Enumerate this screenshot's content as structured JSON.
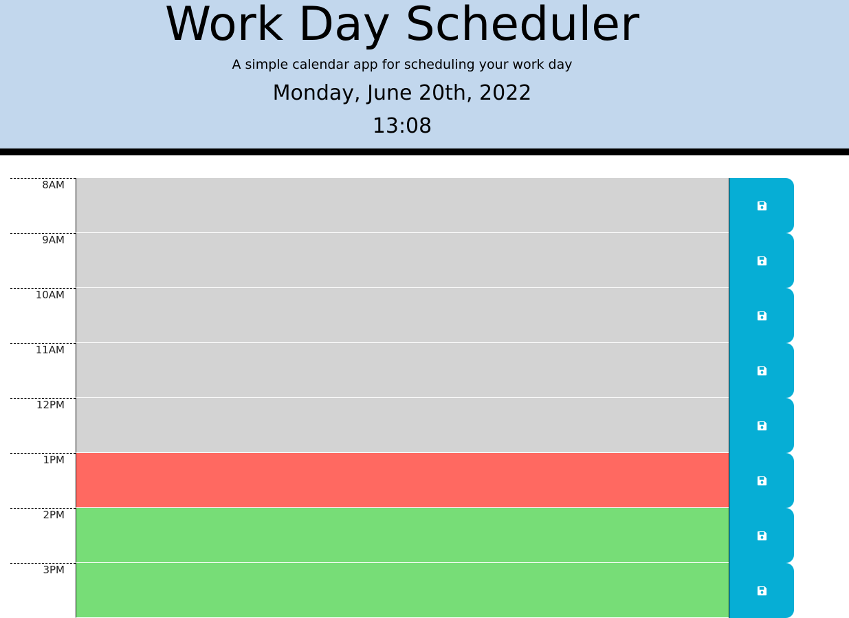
{
  "header": {
    "title": "Work Day Scheduler",
    "subtitle": "A simple calendar app for scheduling your work day",
    "date": "Monday, June 20th, 2022",
    "time": "13:08"
  },
  "colors": {
    "header_bg": "#c2d7ed",
    "past": "#d3d3d3",
    "present": "#ff6961",
    "future": "#77dd77",
    "save_button": "#06aed5"
  },
  "save_icon": "floppy-disk-icon",
  "time_blocks": [
    {
      "hour": "8AM",
      "text": "",
      "status": "past"
    },
    {
      "hour": "9AM",
      "text": "",
      "status": "past"
    },
    {
      "hour": "10AM",
      "text": "",
      "status": "past"
    },
    {
      "hour": "11AM",
      "text": "",
      "status": "past"
    },
    {
      "hour": "12PM",
      "text": "",
      "status": "past"
    },
    {
      "hour": "1PM",
      "text": "",
      "status": "present"
    },
    {
      "hour": "2PM",
      "text": "",
      "status": "future"
    },
    {
      "hour": "3PM",
      "text": "",
      "status": "future"
    }
  ]
}
